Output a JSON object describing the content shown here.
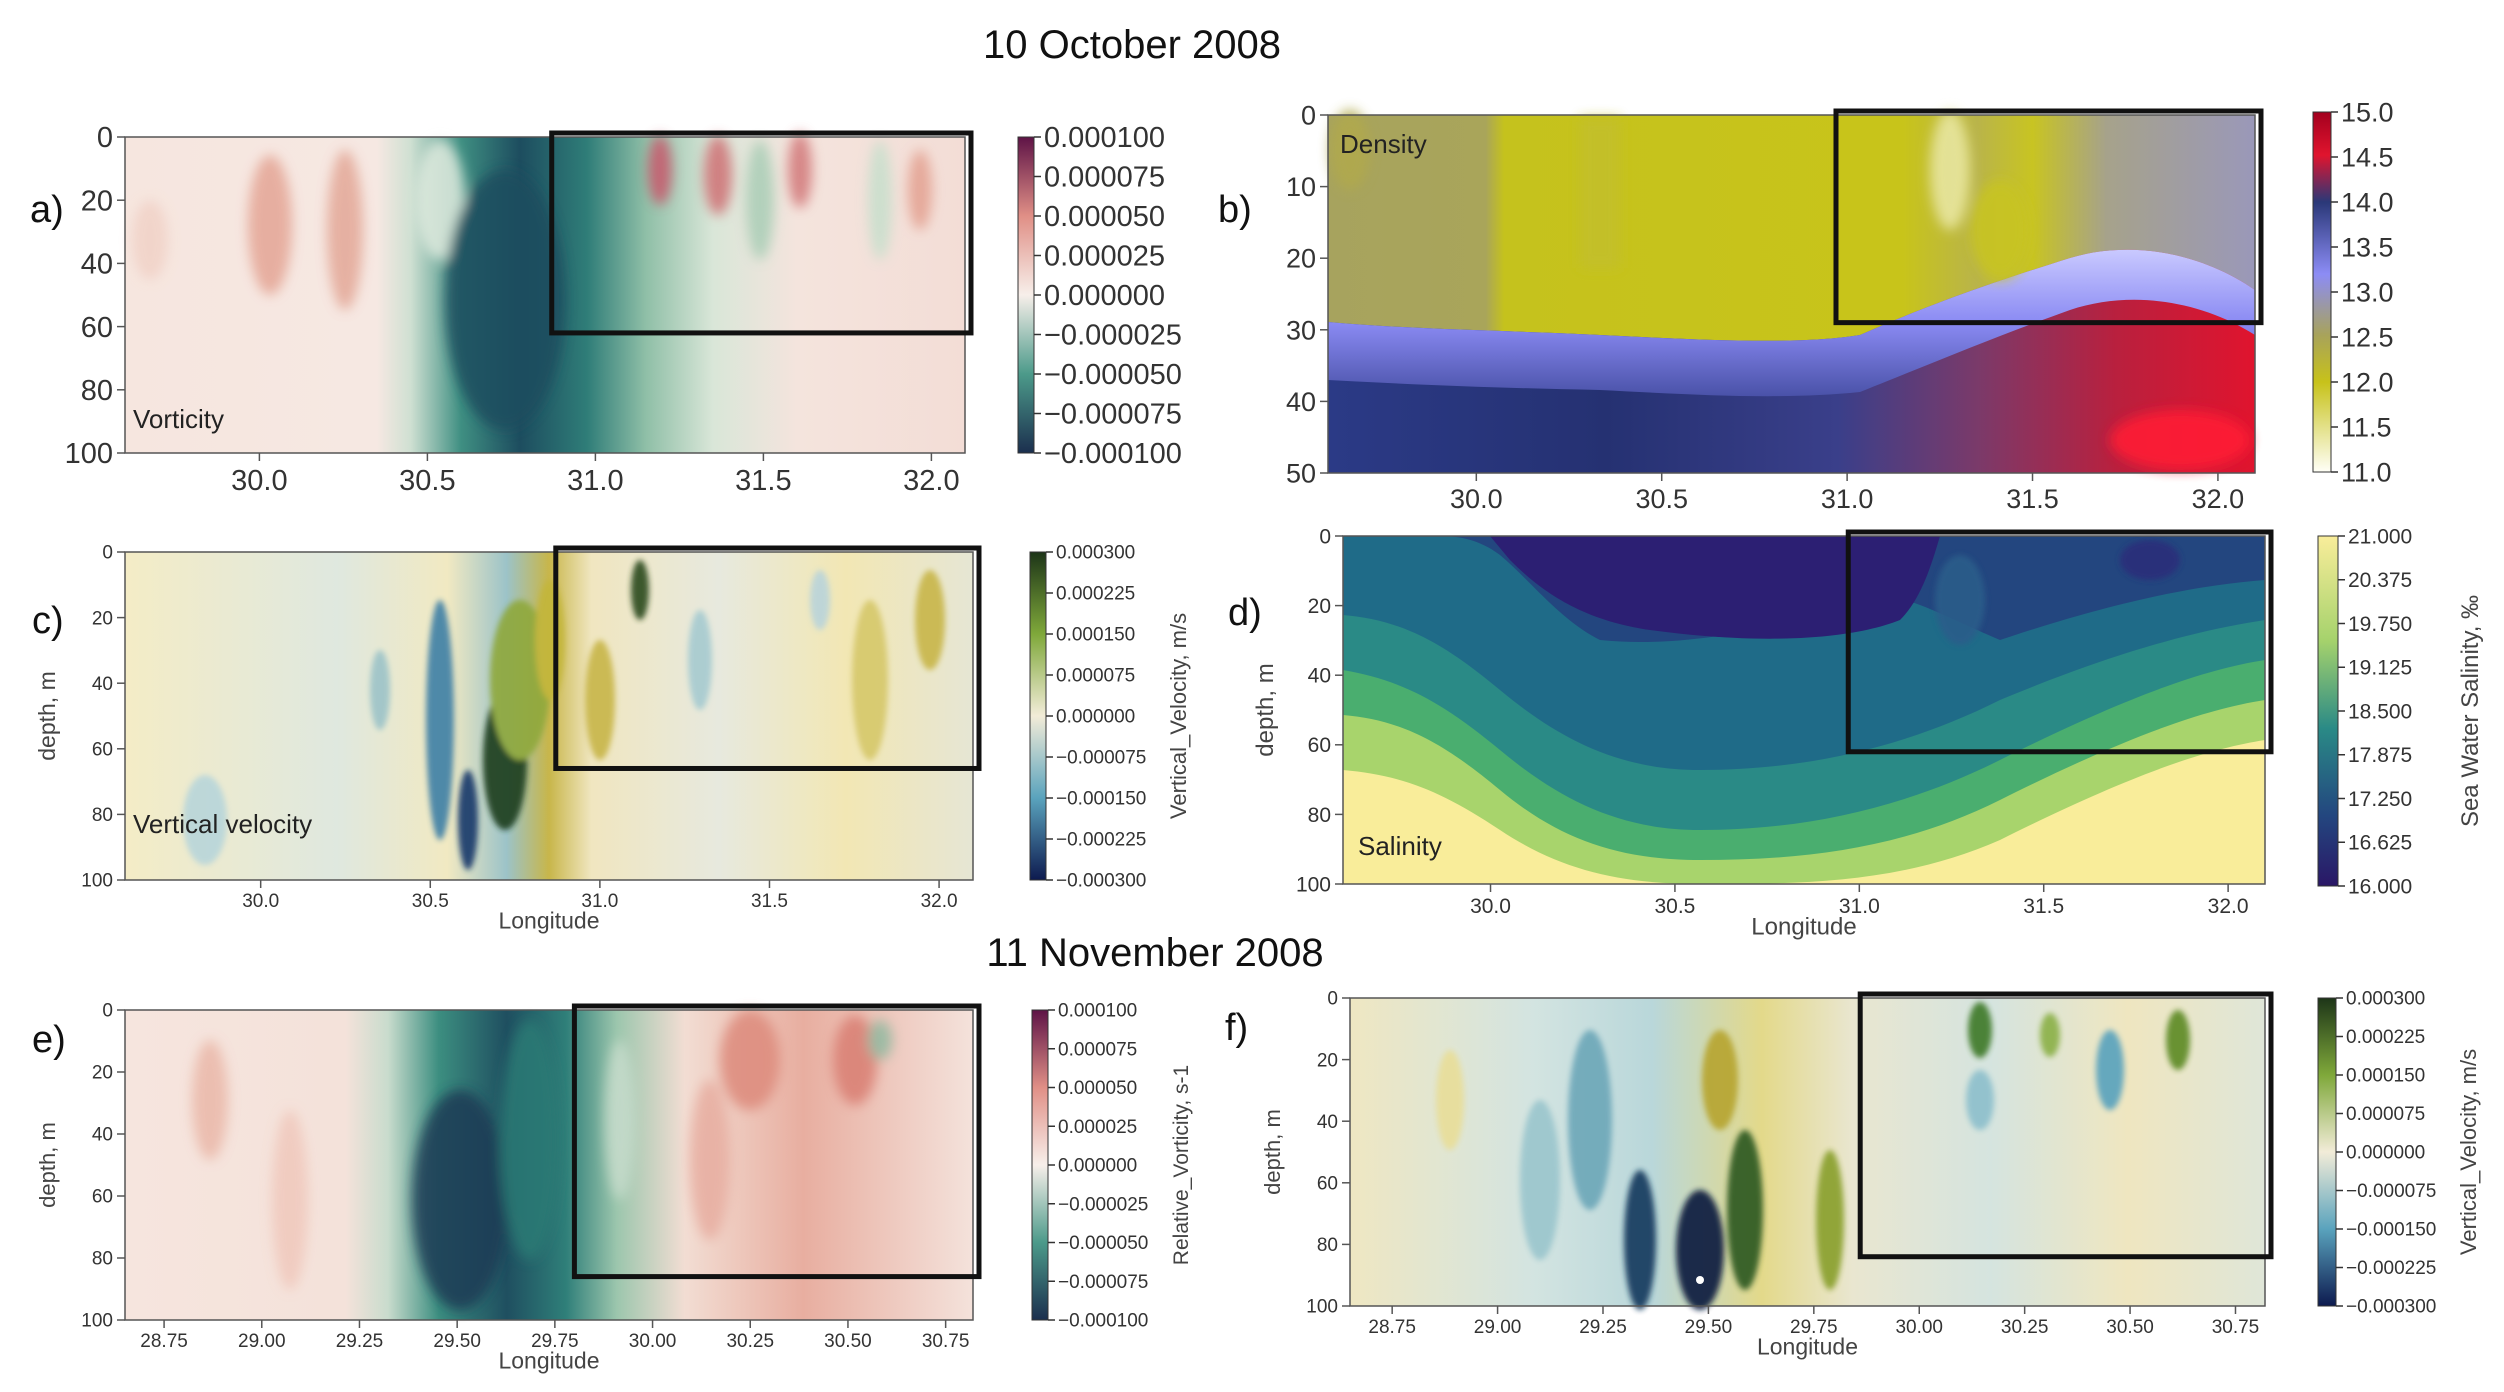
{
  "titles": {
    "top": "10 October 2008",
    "mid": "11 November 2008"
  },
  "colors": {
    "curl_neg": "#1b3f55",
    "curl_mid": "#2f7d78",
    "curl_zero": "#f6efea",
    "curl_pos": "#d98c82",
    "curl_max": "#6d1b4f",
    "density_low": "#fffff7",
    "density_yellow": "#c7c21a",
    "density_olive": "#a8a35a",
    "density_violet": "#8c8cf5",
    "density_navy": "#2a3878",
    "density_red": "#e0142e",
    "vel_neg": "#0d1a4f",
    "vel_zero": "#f2ecd8",
    "vel_pos": "#1d3518",
    "sal_low": "#2a1766",
    "sal_high": "#f9ed9a"
  },
  "chart_data": [
    {
      "id": "a",
      "type": "heatmap",
      "panel_label": "a)",
      "annotation": "Vorticity",
      "x_ticks": [
        "30.0",
        "30.5",
        "31.0",
        "31.5",
        "32.0"
      ],
      "x_range": [
        29.6,
        32.1
      ],
      "y_ticks": [
        "0",
        "20",
        "40",
        "60",
        "80",
        "100"
      ],
      "y_range": [
        0,
        100
      ],
      "xlabel": "",
      "ylabel": "",
      "colorbar_ticks": [
        "0.000100",
        "0.000075",
        "0.000050",
        "0.000025",
        "0.000000",
        "−0.000025",
        "−0.000050",
        "−0.000075",
        "−0.000100"
      ],
      "colorbar_label": "",
      "colormap": "curl",
      "box": {
        "x0": 30.87,
        "x1": 32.1,
        "y0": 0,
        "y1": 62
      }
    },
    {
      "id": "b",
      "type": "heatmap",
      "panel_label": "b)",
      "annotation": "Density",
      "x_ticks": [
        "30.0",
        "30.5",
        "31.0",
        "31.5",
        "32.0"
      ],
      "x_range": [
        29.6,
        32.1
      ],
      "y_ticks": [
        "0",
        "10",
        "20",
        "30",
        "40",
        "50"
      ],
      "y_range": [
        0,
        50
      ],
      "xlabel": "",
      "ylabel": "",
      "colorbar_ticks": [
        "15.0",
        "14.5",
        "14.0",
        "13.5",
        "13.0",
        "12.5",
        "12.0",
        "11.5",
        "11.0"
      ],
      "colorbar_label": "",
      "colormap": "density",
      "box": {
        "x0": 30.97,
        "x1": 32.1,
        "y0": 0,
        "y1": 29
      }
    },
    {
      "id": "c",
      "type": "heatmap",
      "panel_label": "c)",
      "annotation": "Vertical velocity",
      "x_ticks": [
        "30.0",
        "30.5",
        "31.0",
        "31.5",
        "32.0"
      ],
      "x_range": [
        29.6,
        32.1
      ],
      "y_ticks": [
        "0",
        "20",
        "40",
        "60",
        "80",
        "100"
      ],
      "y_range": [
        0,
        100
      ],
      "xlabel": "Longitude",
      "ylabel": "depth, m",
      "colorbar_ticks": [
        "0.000300",
        "0.000225",
        "0.000150",
        "0.000075",
        "0.000000",
        "−0.000075",
        "−0.000150",
        "−0.000225",
        "−0.000300"
      ],
      "colorbar_label": "Vertical_Velocity, m/s",
      "colormap": "velocity",
      "box": {
        "x0": 30.87,
        "x1": 32.1,
        "y0": 0,
        "y1": 66
      }
    },
    {
      "id": "d",
      "type": "heatmap",
      "panel_label": "d)",
      "annotation": "Salinity",
      "x_ticks": [
        "30.0",
        "30.5",
        "31.0",
        "31.5",
        "32.0"
      ],
      "x_range": [
        29.6,
        32.1
      ],
      "y_ticks": [
        "0",
        "20",
        "40",
        "60",
        "80",
        "100"
      ],
      "y_range": [
        0,
        100
      ],
      "xlabel": "Longitude",
      "ylabel": "depth, m",
      "colorbar_ticks": [
        "21.000",
        "20.375",
        "19.750",
        "19.125",
        "18.500",
        "17.875",
        "17.250",
        "16.625",
        "16.000"
      ],
      "colorbar_label": "Sea Water Salinity, ‰",
      "colormap": "salinity",
      "box": {
        "x0": 30.97,
        "x1": 32.1,
        "y0": 0,
        "y1": 62
      }
    },
    {
      "id": "e",
      "type": "heatmap",
      "panel_label": "e)",
      "annotation": "",
      "x_ticks": [
        "28.75",
        "29.00",
        "29.25",
        "29.50",
        "29.75",
        "30.00",
        "30.25",
        "30.50",
        "30.75"
      ],
      "x_range": [
        28.65,
        30.82
      ],
      "y_ticks": [
        "0",
        "20",
        "40",
        "60",
        "80",
        "100"
      ],
      "y_range": [
        0,
        100
      ],
      "xlabel": "Longitude",
      "ylabel": "depth, m",
      "colorbar_ticks": [
        "0.000100",
        "0.000075",
        "0.000050",
        "0.000025",
        "0.000000",
        "−0.000025",
        "−0.000050",
        "−0.000075",
        "−0.000100"
      ],
      "colorbar_label": "Relative_Vorticity, s-1",
      "colormap": "curl",
      "box": {
        "x0": 29.8,
        "x1": 30.82,
        "y0": 0,
        "y1": 86
      }
    },
    {
      "id": "f",
      "type": "heatmap",
      "panel_label": "f)",
      "annotation": "",
      "x_ticks": [
        "28.75",
        "29.00",
        "29.25",
        "29.50",
        "29.75",
        "30.00",
        "30.25",
        "30.50",
        "30.75"
      ],
      "x_range": [
        28.65,
        30.82
      ],
      "y_ticks": [
        "0",
        "20",
        "40",
        "60",
        "80",
        "100"
      ],
      "y_range": [
        0,
        100
      ],
      "xlabel": "Longitude",
      "ylabel": "depth, m",
      "colorbar_ticks": [
        "0.000300",
        "0.000225",
        "0.000150",
        "0.000075",
        "0.000000",
        "−0.000075",
        "−0.000150",
        "−0.000225",
        "−0.000300"
      ],
      "colorbar_label": "Vertical_Velocity, m/s",
      "colormap": "velocity",
      "box": {
        "x0": 29.86,
        "x1": 30.82,
        "y0": 0,
        "y1": 84
      }
    }
  ]
}
